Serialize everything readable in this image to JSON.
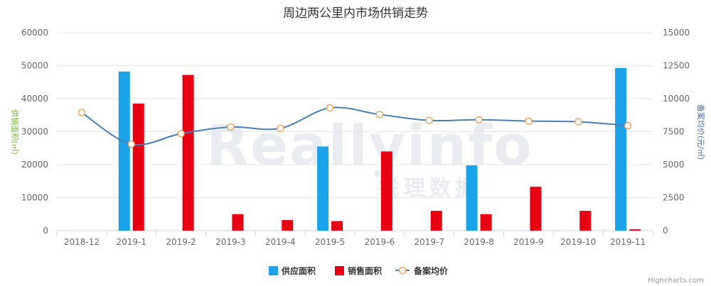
{
  "chart_data": {
    "type": "bar",
    "title": "周边两公里内市场供销走势",
    "categories": [
      "2018-12",
      "2019-1",
      "2019-2",
      "2019-3",
      "2019-4",
      "2019-5",
      "2019-6",
      "2019-7",
      "2019-8",
      "2019-9",
      "2019-10",
      "2019-11"
    ],
    "y_left": {
      "label": "供销面积(㎡)",
      "ylim": [
        0,
        60000
      ],
      "ticks": [
        0,
        10000,
        20000,
        30000,
        40000,
        50000,
        60000
      ]
    },
    "y_right": {
      "label": "备案均价(元/㎡)",
      "ylim": [
        0,
        15000
      ],
      "ticks": [
        0,
        2500,
        5000,
        7500,
        10000,
        12500,
        15000
      ]
    },
    "series": [
      {
        "name": "供应面积",
        "type": "bar",
        "axis": "left",
        "color": "#1aa3e8",
        "values": [
          0,
          48200,
          0,
          0,
          0,
          25500,
          0,
          0,
          19800,
          0,
          0,
          49300
        ]
      },
      {
        "name": "销售面积",
        "type": "bar",
        "axis": "left",
        "color": "#e60012",
        "values": [
          0,
          38500,
          47200,
          5000,
          3200,
          2900,
          24000,
          6000,
          5000,
          13300,
          6000,
          400
        ]
      },
      {
        "name": "备案均价",
        "type": "line",
        "axis": "right",
        "color": "#4a7ebb",
        "marker_color": "#f0a35e",
        "values": [
          8950,
          6550,
          7350,
          7850,
          7750,
          9300,
          8800,
          8350,
          8400,
          8300,
          8250,
          7950
        ]
      }
    ],
    "grid": true,
    "legend_position": "bottom-center",
    "credits": "Highcharts.com",
    "watermark": "Reallyinfo",
    "watermark_sub": "锐理数据"
  }
}
